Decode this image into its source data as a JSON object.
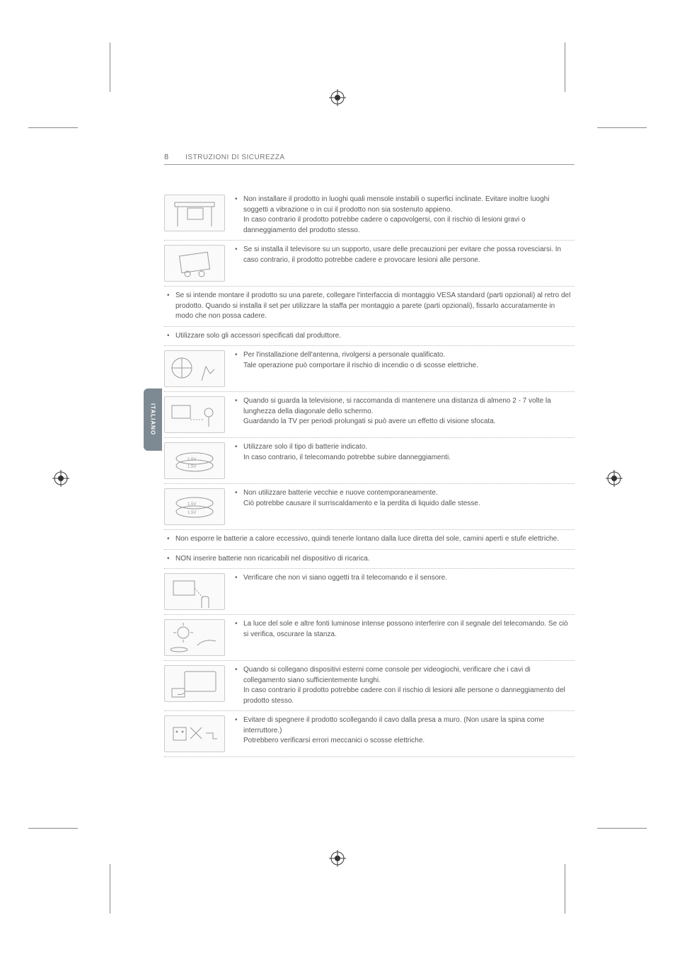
{
  "page_number": "8",
  "header_title": "ISTRUZIONI DI SICUREZZA",
  "side_tab": "ITALIANO",
  "items": [
    {
      "text": "Non installare il prodotto in luoghi quali mensole instabili o superfici inclinate. Evitare inoltre luoghi soggetti a vibrazione o in cui il prodotto non sia sostenuto appieno.\nIn caso contrario il prodotto potrebbe cadere o capovolgersi, con il rischio di lesioni gravi o danneggiamento del prodotto stesso."
    },
    {
      "text": "Se si installa il televisore su un supporto, usare delle precauzioni per evitare che possa rovesciarsi. In caso contrario, il prodotto potrebbe cadere e provocare lesioni alle persone."
    },
    {
      "full": true,
      "text": "Se si intende montare il prodotto su una parete, collegare l'interfaccia di montaggio VESA standard (parti opzionali) al retro del prodotto. Quando si installa il set per utilizzare la staffa per montaggio a parete (parti opzionali), fissarlo accuratamente in modo che non possa cadere."
    },
    {
      "full": true,
      "text": "Utilizzare solo gli accessori specificati dal produttore."
    },
    {
      "text": "Per l'installazione dell'antenna, rivolgersi a personale qualificato.\nTale operazione può comportare il rischio di incendio o di scosse elettriche."
    },
    {
      "text": "Quando si guarda la televisione, si raccomanda di mantenere una distanza di almeno 2 - 7 volte la lunghezza della diagonale dello schermo.\nGuardando la TV per periodi prolungati si può avere un effetto di visione sfocata."
    },
    {
      "text": "Utilizzare solo il tipo di batterie indicato.\nIn caso contrario, il telecomando potrebbe subire danneggiamenti."
    },
    {
      "text": "Non utilizzare batterie vecchie e nuove contemporaneamente.\nCiò potrebbe causare il surriscaldamento e la perdita di liquido dalle stesse."
    },
    {
      "full": true,
      "text": "Non esporre le batterie a calore eccessivo, quindi tenerle lontano dalla luce diretta del sole, camini aperti e stufe elettriche."
    },
    {
      "full": true,
      "text": "NON inserire batterie non ricaricabili nel dispositivo di ricarica."
    },
    {
      "text": "Verificare che non vi siano oggetti tra il telecomando e il sensore."
    },
    {
      "text": "La luce del sole e altre fonti luminose intense possono interferire con il segnale del telecomando. Se ciò si verifica, oscurare la stanza."
    },
    {
      "text": "Quando si collegano dispositivi esterni come console per videogiochi, verificare che i cavi di collegamento siano sufficientemente lunghi.\nIn caso contrario il prodotto potrebbe cadere con il rischio di lesioni alle persone o danneggiamento del prodotto stesso."
    },
    {
      "text": "Evitare di spegnere il prodotto scollegando il cavo dalla presa a muro. (Non usare la spina come interruttore.)\nPotrebbero verificarsi errori meccanici o scosse elettriche."
    }
  ],
  "icons": {
    "shelf": "<rect x='12' y='8' width='56' height='6' fill='none' stroke='#999'/><rect x='30' y='16' width='22' height='16' fill='none' stroke='#999'/><line x1='16' y1='14' x2='16' y2='42' stroke='#999'/><line x1='64' y1='14' x2='64' y2='42' stroke='#999'/>",
    "tip": "<rect x='20' y='10' width='40' height='24' fill='none' stroke='#999' transform='rotate(-8 40 22)'/><circle cx='30' cy='38' r='4' fill='none' stroke='#999'/><circle cx='50' cy='38' r='4' fill='none' stroke='#999'/>",
    "antenna": "<circle cx='22' cy='22' r='14' fill='none' stroke='#999'/><line x1='22' y1='8' x2='22' y2='36' stroke='#999'/><line x1='8' y1='22' x2='36' y2='22' stroke='#999'/><path d='M50 40 l6 -20 l6 10 l6 -6' fill='none' stroke='#999'/>",
    "distance": "<rect x='8' y='10' width='26' height='18' fill='none' stroke='#999'/><circle cx='60' cy='20' r='6' fill='none' stroke='#999'/><line x1='60' y1='26' x2='60' y2='40' stroke='#999'/><line x1='34' y1='30' x2='52' y2='30' stroke='#999' stroke-dasharray='2 2'/>",
    "battery1": "<ellipse cx='40' cy='20' rx='26' ry='8' fill='none' stroke='#999'/><ellipse cx='40' cy='30' rx='26' ry='8' fill='none' stroke='#999'/><text x='30' y='23' font-size='6' fill='#999'>1.5V</text><text x='30' y='33' font-size='6' fill='#999'>1.5V</text>",
    "battery2": "<ellipse cx='40' cy='18' rx='26' ry='8' fill='none' stroke='#999'/><ellipse cx='40' cy='30' rx='26' ry='8' fill='none' stroke='#999'/><text x='30' y='21' font-size='6' fill='#999'>1.5V</text><text x='30' y='33' font-size='6' fill='#999'>1.5V</text>",
    "remote": "<rect x='10' y='8' width='30' height='20' fill='none' stroke='#999'/><rect x='50' y='30' width='10' height='20' rx='3' fill='none' stroke='#999'/><line x1='40' y1='18' x2='52' y2='32' stroke='#999' stroke-dasharray='2 2'/>",
    "sun": "<circle cx='24' cy='16' r='8' fill='none' stroke='#999'/><line x1='24' y1='2' x2='24' y2='6' stroke='#999'/><line x1='24' y1='26' x2='24' y2='30' stroke='#999'/><line x1='10' y1='16' x2='14' y2='16' stroke='#999'/><line x1='34' y1='16' x2='38' y2='16' stroke='#999'/><path d='M44 34 q10 -10 26 -6' fill='none' stroke='#999'/><ellipse cx='18' cy='40' rx='12' ry='3' fill='none' stroke='#999'/>",
    "console": "<rect x='26' y='6' width='44' height='28' rx='2' fill='none' stroke='#999'/><rect x='8' y='30' width='18' height='12' fill='none' stroke='#999'/><path d='M26 36 q-6 4 -10 2' fill='none' stroke='#999'/>",
    "plug": "<rect x='10' y='14' width='18' height='18' fill='none' stroke='#999'/><circle cx='15' cy='20' r='1.5' fill='#999'/><circle cx='23' cy='20' r='1.5' fill='#999'/><path d='M34 14 l16 16 M34 30 l16 -16' stroke='#999'/><path d='M56 22 l10 0 l0 8 l6 0' fill='none' stroke='#999'/>"
  },
  "icon_order": [
    "shelf",
    "tip",
    "antenna",
    "distance",
    "battery1",
    "battery2",
    "remote",
    "sun",
    "console",
    "plug"
  ],
  "colors": {
    "text": "#555555",
    "border": "#bbbbbb",
    "tab": "#7d8a93",
    "tab_text": "#ffffff"
  }
}
